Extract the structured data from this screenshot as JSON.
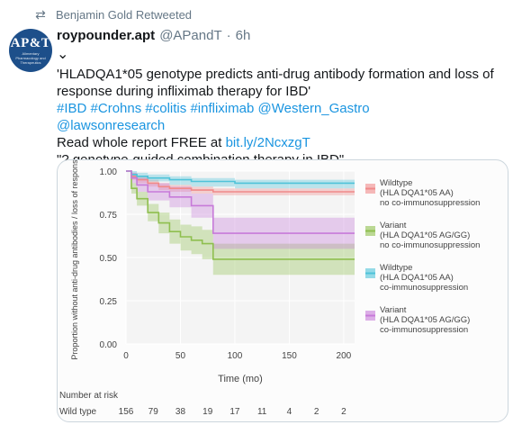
{
  "retweet": {
    "icon": "retweet-icon",
    "text": "Benjamin Gold Retweeted"
  },
  "tweet": {
    "avatar": {
      "logo": "AP&T",
      "subtitle": "Alimentary Pharmacology and Therapeutics"
    },
    "display_name": "roypounder.apt",
    "handle": "@APandT",
    "separator": "·",
    "time": "6h",
    "lines": [
      [
        {
          "t": "'HLADQA1*05 genotype predicts anti-drug antibody formation and loss of",
          "k": "text"
        }
      ],
      [
        {
          "t": "response during infliximab therapy for IBD'",
          "k": "text"
        }
      ],
      [
        {
          "t": "#IBD",
          "k": "hash"
        },
        {
          "t": " ",
          "k": "text"
        },
        {
          "t": "#Crohns",
          "k": "hash"
        },
        {
          "t": " ",
          "k": "text"
        },
        {
          "t": "#colitis",
          "k": "hash"
        },
        {
          "t": " ",
          "k": "text"
        },
        {
          "t": "#infliximab",
          "k": "hash"
        },
        {
          "t": " ",
          "k": "text"
        },
        {
          "t": "@Western_Gastro",
          "k": "hash"
        }
      ],
      [
        {
          "t": "@lawsonresearch",
          "k": "hash"
        }
      ],
      [
        {
          "t": "Read whole report FREE at ",
          "k": "text"
        },
        {
          "t": "bit.ly/2NcxzgT",
          "k": "link"
        }
      ],
      [
        {
          "t": "\"? genotype-guided combination therapy in IBD\"",
          "k": "text"
        }
      ]
    ]
  },
  "chart_data": {
    "type": "line",
    "title": "",
    "xlabel": "Time (mo)",
    "ylabel": "Proportion without anti-drug antibodies / loss of response",
    "xlim": [
      0,
      210
    ],
    "ylim": [
      0,
      1
    ],
    "xticks": [
      0,
      50,
      100,
      150,
      200
    ],
    "yticks": [
      0.0,
      0.25,
      0.5,
      0.75,
      1.0
    ],
    "ytick_labels": [
      "0.00",
      "0.25",
      "0.50",
      "0.75",
      "1.00"
    ],
    "series": [
      {
        "name": "Wildtype (HLA DQA1*05 AA) no co-immunosuppression",
        "color": "#f08a8a",
        "x": [
          0,
          5,
          10,
          20,
          30,
          40,
          60,
          80,
          100,
          150,
          210
        ],
        "y": [
          1.0,
          0.97,
          0.95,
          0.93,
          0.91,
          0.9,
          0.89,
          0.88,
          0.88,
          0.88,
          0.88
        ],
        "lower": [
          1.0,
          0.95,
          0.93,
          0.91,
          0.89,
          0.88,
          0.87,
          0.86,
          0.86,
          0.86,
          0.86
        ],
        "upper": [
          1.0,
          0.99,
          0.97,
          0.95,
          0.93,
          0.92,
          0.91,
          0.9,
          0.9,
          0.9,
          0.9
        ]
      },
      {
        "name": "Variant (HLA DQA1*05 AG/GG) no co-immunosuppression",
        "color": "#8fbf4f",
        "x": [
          0,
          5,
          10,
          20,
          30,
          40,
          50,
          60,
          70,
          80,
          100,
          150,
          210
        ],
        "y": [
          1.0,
          0.9,
          0.84,
          0.76,
          0.7,
          0.65,
          0.62,
          0.6,
          0.58,
          0.49,
          0.49,
          0.49,
          0.49
        ],
        "lower": [
          1.0,
          0.87,
          0.8,
          0.71,
          0.64,
          0.58,
          0.54,
          0.52,
          0.49,
          0.4,
          0.4,
          0.4,
          0.4
        ],
        "upper": [
          1.0,
          0.93,
          0.88,
          0.81,
          0.76,
          0.72,
          0.69,
          0.68,
          0.66,
          0.58,
          0.58,
          0.58,
          0.58
        ]
      },
      {
        "name": "Wildtype (HLA DQA1*05 AA) co-immunosuppression",
        "color": "#4fc3d9",
        "x": [
          0,
          5,
          10,
          20,
          40,
          60,
          100,
          150,
          210
        ],
        "y": [
          1.0,
          0.98,
          0.97,
          0.96,
          0.95,
          0.94,
          0.93,
          0.93,
          0.93
        ],
        "lower": [
          1.0,
          0.96,
          0.95,
          0.94,
          0.92,
          0.91,
          0.9,
          0.9,
          0.9
        ],
        "upper": [
          1.0,
          1.0,
          0.99,
          0.98,
          0.97,
          0.96,
          0.95,
          0.95,
          0.95
        ]
      },
      {
        "name": "Variant (HLA DQA1*05 AG/GG) co-immunosuppression",
        "color": "#c77ad9",
        "x": [
          0,
          5,
          10,
          20,
          40,
          60,
          80,
          100,
          150,
          210
        ],
        "y": [
          1.0,
          0.96,
          0.92,
          0.88,
          0.85,
          0.8,
          0.64,
          0.64,
          0.64,
          0.64
        ],
        "lower": [
          1.0,
          0.93,
          0.88,
          0.83,
          0.79,
          0.73,
          0.55,
          0.55,
          0.55,
          0.55
        ],
        "upper": [
          1.0,
          0.99,
          0.96,
          0.93,
          0.91,
          0.87,
          0.73,
          0.73,
          0.73,
          0.73
        ]
      }
    ],
    "legend": [
      {
        "color": "#f08a8a",
        "lines": [
          "Wildtype",
          "(HLA DQA1*05 AA)",
          "no co-immunosuppression"
        ]
      },
      {
        "color": "#8fbf4f",
        "lines": [
          "Variant",
          "(HLA DQA1*05 AG/GG)",
          "no co-immunosuppression"
        ]
      },
      {
        "color": "#4fc3d9",
        "lines": [
          "Wildtype",
          "(HLA DQA1*05 AA)",
          "co-immunosuppression"
        ]
      },
      {
        "color": "#c77ad9",
        "lines": [
          "Variant",
          "(HLA DQA1*05 AG/GG)",
          "co-immunosuppression"
        ]
      }
    ],
    "legend_position": "right",
    "risk_table": {
      "title": "Number at risk",
      "row_label": "Wild type",
      "values": [
        "156",
        "79",
        "38",
        "19",
        "17",
        "11",
        "4",
        "2",
        "2"
      ],
      "x": [
        0,
        25,
        50,
        75,
        100,
        125,
        150,
        175,
        200
      ]
    }
  }
}
